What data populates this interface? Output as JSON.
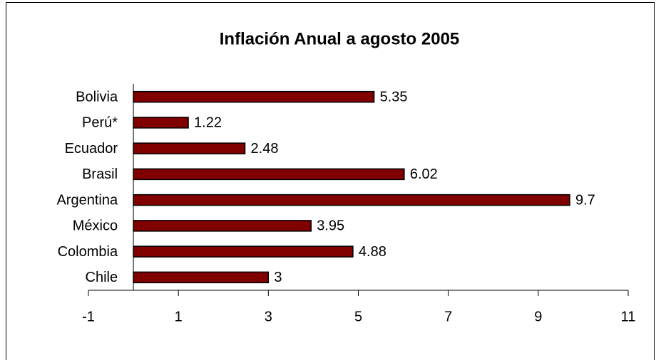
{
  "chart_data": {
    "type": "bar",
    "orientation": "horizontal",
    "title": "Inflación Anual a agosto 2005",
    "categories": [
      "Bolivia",
      "Perú*",
      "Ecuador",
      "Brasil",
      "Argentina",
      "México",
      "Colombia",
      "Chile"
    ],
    "values": [
      5.35,
      1.22,
      2.48,
      6.02,
      9.7,
      3.95,
      4.88,
      3
    ],
    "color": "#800000",
    "xlim": [
      -1,
      11
    ],
    "xticks": [
      -1,
      1,
      3,
      5,
      7,
      9,
      11
    ],
    "grid": false
  }
}
